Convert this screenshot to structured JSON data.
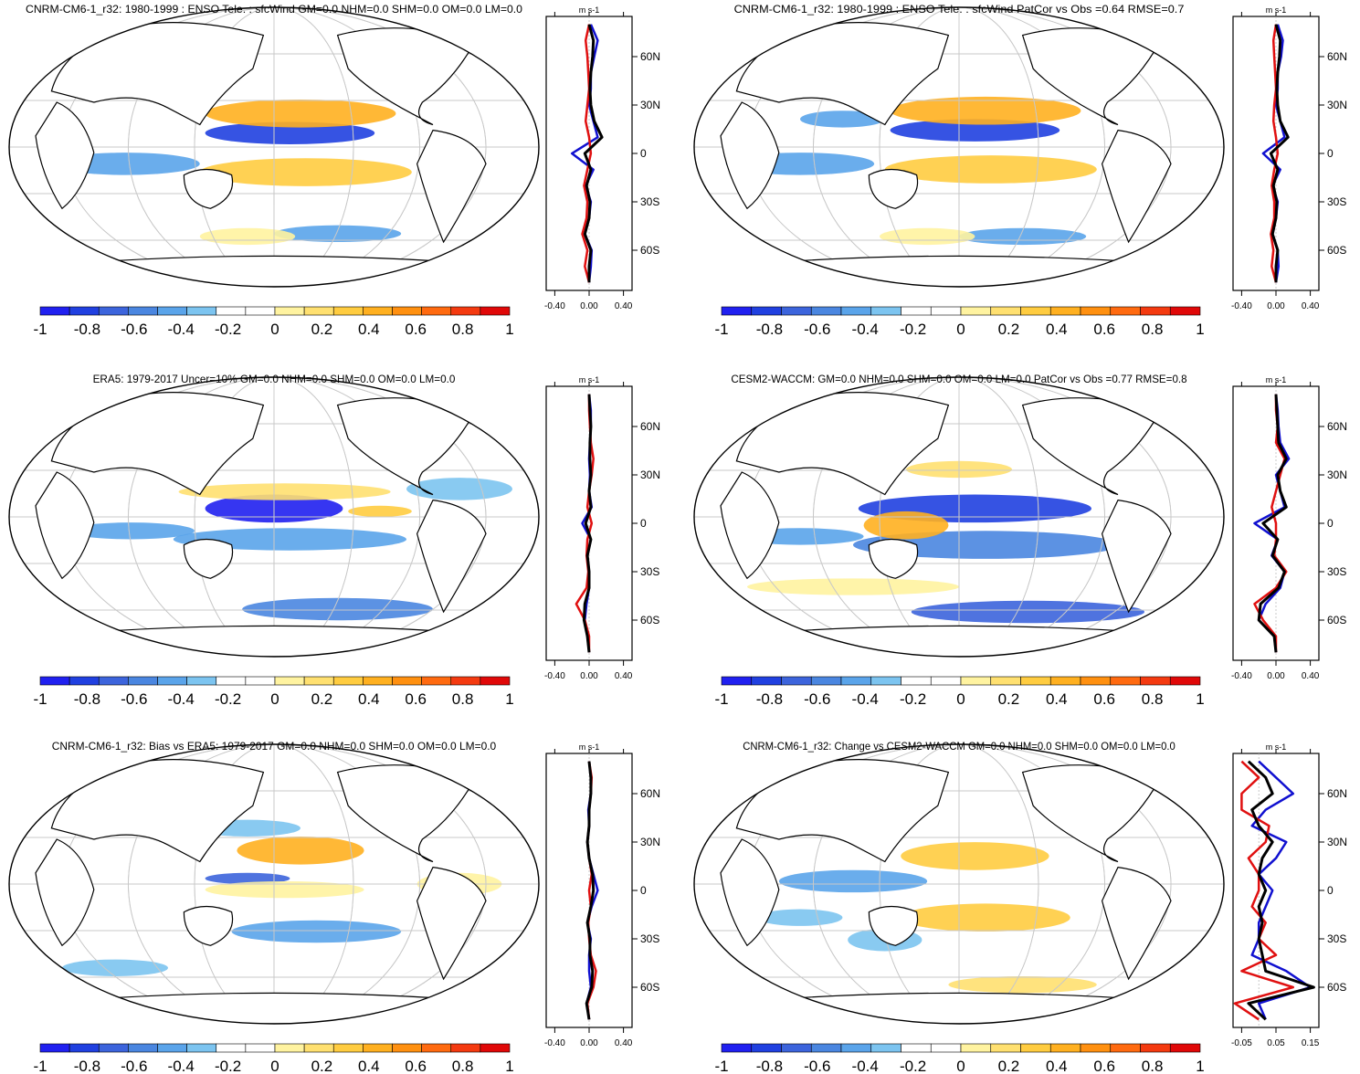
{
  "chart_data": [
    {
      "type": "heatmap",
      "title": "CNRM-CM6-1_r32: 1980-1999 : ENSO Tele. : sfcWind GM=0.0 NHM=0.0 SHM=0.0 OM=0.0 LM=0.0",
      "units": "m s-1",
      "colorbar_ticks": [
        "-1",
        "-0.8",
        "-0.6",
        "-0.4",
        "-0.2",
        "0",
        "0.2",
        "0.4",
        "0.6",
        "0.8",
        "1"
      ],
      "profile_xticks": [
        "-0.40",
        "0.00",
        "0.40"
      ],
      "lat_ticks": [
        "60N",
        "30N",
        "0",
        "30S",
        "60S"
      ],
      "lat_values": [
        60,
        30,
        0,
        -30,
        -60
      ],
      "profile": {
        "lat": [
          -80,
          -70,
          -60,
          -50,
          -40,
          -30,
          -20,
          -10,
          0,
          10,
          20,
          30,
          40,
          50,
          60,
          70,
          80
        ],
        "series": [
          {
            "name": "model",
            "color": "#1010d0",
            "values": [
              0.0,
              0.02,
              0.03,
              -0.05,
              0.0,
              0.02,
              -0.04,
              0.05,
              -0.2,
              0.1,
              0.05,
              0.0,
              0.02,
              0.02,
              0.06,
              0.1,
              0.02
            ]
          },
          {
            "name": "obs",
            "color": "#e01010",
            "values": [
              0.0,
              -0.05,
              -0.02,
              -0.08,
              -0.03,
              -0.02,
              -0.06,
              -0.02,
              0.02,
              0.0,
              -0.04,
              -0.02,
              0.0,
              -0.01,
              -0.02,
              -0.04,
              0.0
            ]
          },
          {
            "name": "multi",
            "color": "#000000",
            "values": [
              0.0,
              0.0,
              0.02,
              -0.05,
              0.0,
              0.01,
              -0.03,
              0.02,
              -0.05,
              0.15,
              0.06,
              0.02,
              0.01,
              0.02,
              0.04,
              0.05,
              0.0
            ]
          }
        ]
      }
    },
    {
      "type": "heatmap",
      "title": "CNRM-CM6-1_r32: 1980-1999 : ENSO Tele. : sfcWind PatCor vs Obs =0.64 RMSE=0.7",
      "units": "m s-1",
      "colorbar_ticks": [
        "-1",
        "-0.8",
        "-0.6",
        "-0.4",
        "-0.2",
        "0",
        "0.2",
        "0.4",
        "0.6",
        "0.8",
        "1"
      ],
      "profile_xticks": [
        "-0.40",
        "0.00",
        "0.40"
      ],
      "lat_ticks": [
        "60N",
        "30N",
        "0",
        "30S",
        "60S"
      ],
      "lat_values": [
        60,
        30,
        0,
        -30,
        -60
      ],
      "profile": {
        "lat": [
          -80,
          -70,
          -60,
          -50,
          -40,
          -30,
          -20,
          -10,
          0,
          10,
          20,
          30,
          40,
          50,
          60,
          70,
          80
        ],
        "series": [
          {
            "name": "model",
            "color": "#1010d0",
            "values": [
              0.0,
              0.03,
              0.02,
              -0.04,
              0.0,
              0.02,
              -0.04,
              0.05,
              -0.15,
              0.1,
              0.05,
              0.0,
              0.02,
              0.02,
              0.06,
              0.08,
              0.02
            ]
          },
          {
            "name": "obs",
            "color": "#e01010",
            "values": [
              0.0,
              -0.05,
              -0.03,
              -0.06,
              -0.02,
              -0.02,
              -0.05,
              -0.02,
              0.02,
              0.0,
              -0.03,
              -0.02,
              0.0,
              -0.01,
              -0.02,
              -0.03,
              0.0
            ]
          },
          {
            "name": "multi",
            "color": "#000000",
            "values": [
              0.0,
              0.0,
              0.02,
              -0.04,
              0.0,
              0.01,
              -0.03,
              0.02,
              -0.06,
              0.14,
              0.05,
              0.02,
              0.01,
              0.02,
              0.04,
              0.05,
              0.0
            ]
          }
        ]
      }
    },
    {
      "type": "heatmap",
      "title": "ERA5: 1979-2017 Uncer=10% GM=0.0 NHM=0.0 SHM=0.0 OM=0.0 LM=0.0",
      "units": "m s-1",
      "colorbar_ticks": [
        "-1",
        "-0.8",
        "-0.6",
        "-0.4",
        "-0.2",
        "0",
        "0.2",
        "0.4",
        "0.6",
        "0.8",
        "1"
      ],
      "profile_xticks": [
        "-0.40",
        "0.00",
        "0.40"
      ],
      "lat_ticks": [
        "60N",
        "30N",
        "0",
        "30S",
        "60S"
      ],
      "lat_values": [
        60,
        30,
        0,
        -30,
        -60
      ],
      "profile": {
        "lat": [
          -80,
          -70,
          -60,
          -50,
          -40,
          -30,
          -20,
          -10,
          0,
          10,
          20,
          30,
          40,
          50,
          60,
          70,
          80
        ],
        "series": [
          {
            "name": "model",
            "color": "#1010d0",
            "values": [
              0.0,
              -0.02,
              -0.05,
              -0.03,
              0.0,
              0.0,
              -0.02,
              0.02,
              -0.08,
              0.03,
              0.0,
              0.01,
              0.0,
              0.01,
              0.02,
              0.02,
              0.0
            ]
          },
          {
            "name": "obs",
            "color": "#e01010",
            "values": [
              0.0,
              0.0,
              -0.05,
              -0.15,
              -0.03,
              -0.01,
              -0.03,
              -0.02,
              0.03,
              -0.02,
              0.0,
              0.03,
              0.05,
              0.02,
              0.01,
              0.0,
              0.0
            ]
          },
          {
            "name": "multi",
            "color": "#000000",
            "values": [
              0.0,
              -0.02,
              -0.06,
              -0.05,
              0.0,
              0.0,
              -0.02,
              0.02,
              -0.04,
              0.02,
              0.0,
              0.02,
              0.01,
              0.01,
              0.02,
              0.01,
              0.0
            ]
          }
        ]
      }
    },
    {
      "type": "heatmap",
      "title": "CESM2-WACCM: GM=0.0 NHM=0.0 SHM=0.0 OM=0.0 LM=0.0 PatCor vs Obs =0.77 RMSE=0.8",
      "units": "m s-1",
      "colorbar_ticks": [
        "-1",
        "-0.8",
        "-0.6",
        "-0.4",
        "-0.2",
        "0",
        "0.2",
        "0.4",
        "0.6",
        "0.8",
        "1"
      ],
      "profile_xticks": [
        "-0.40",
        "0.00",
        "0.40"
      ],
      "lat_ticks": [
        "60N",
        "30N",
        "0",
        "30S",
        "60S"
      ],
      "lat_values": [
        60,
        30,
        0,
        -30,
        -60
      ],
      "profile": {
        "lat": [
          -80,
          -70,
          -60,
          -50,
          -40,
          -30,
          -20,
          -10,
          0,
          10,
          20,
          30,
          40,
          50,
          60,
          70,
          80
        ],
        "series": [
          {
            "name": "model",
            "color": "#1010d0",
            "values": [
              0.0,
              -0.02,
              -0.2,
              -0.12,
              0.05,
              0.1,
              -0.05,
              0.02,
              -0.25,
              0.1,
              0.05,
              0.0,
              0.15,
              0.05,
              0.03,
              0.02,
              0.0
            ]
          },
          {
            "name": "obs",
            "color": "#e01010",
            "values": [
              0.0,
              0.0,
              -0.15,
              -0.25,
              0.0,
              0.12,
              -0.02,
              0.0,
              0.0,
              -0.05,
              0.0,
              0.05,
              0.1,
              0.0,
              0.02,
              0.0,
              0.0
            ]
          },
          {
            "name": "multi",
            "color": "#000000",
            "values": [
              0.0,
              -0.02,
              -0.2,
              -0.18,
              0.03,
              0.1,
              -0.04,
              0.02,
              -0.15,
              0.12,
              0.05,
              0.02,
              0.12,
              0.03,
              0.02,
              0.01,
              0.0
            ]
          }
        ]
      }
    },
    {
      "type": "heatmap",
      "title": "CNRM-CM6-1_r32: Bias vs ERA5: 1979-2017 GM=0.0 NHM=0.0 SHM=0.0 OM=0.0 LM=0.0",
      "units": "m s-1",
      "colorbar_ticks": [
        "-1",
        "-0.8",
        "-0.6",
        "-0.4",
        "-0.2",
        "0",
        "0.2",
        "0.4",
        "0.6",
        "0.8",
        "1"
      ],
      "profile_xticks": [
        "-0.40",
        "0.00",
        "0.40"
      ],
      "lat_ticks": [
        "60N",
        "30N",
        "0",
        "30S",
        "60S"
      ],
      "lat_values": [
        60,
        30,
        0,
        -30,
        -60
      ],
      "profile": {
        "lat": [
          -80,
          -70,
          -60,
          -50,
          -40,
          -30,
          -20,
          -10,
          0,
          10,
          20,
          30,
          40,
          50,
          60,
          70,
          80
        ],
        "series": [
          {
            "name": "model",
            "color": "#1010d0",
            "values": [
              0.0,
              -0.03,
              0.02,
              0.0,
              0.0,
              0.02,
              -0.02,
              0.03,
              0.1,
              0.05,
              0.0,
              -0.02,
              0.0,
              -0.01,
              0.02,
              0.02,
              0.0
            ]
          },
          {
            "name": "obs",
            "color": "#e01010",
            "values": [
              0.0,
              -0.02,
              0.05,
              0.08,
              0.02,
              0.0,
              -0.01,
              0.02,
              0.0,
              0.03,
              0.0,
              -0.02,
              0.0,
              0.0,
              0.02,
              0.03,
              0.0
            ]
          },
          {
            "name": "multi",
            "color": "#000000",
            "values": [
              0.0,
              -0.03,
              0.03,
              0.04,
              0.01,
              0.01,
              -0.02,
              0.02,
              0.05,
              0.04,
              0.0,
              -0.02,
              0.0,
              0.0,
              0.02,
              0.02,
              0.0
            ]
          }
        ]
      }
    },
    {
      "type": "heatmap",
      "title": "CNRM-CM6-1_r32: Change vs CESM2-WACCM GM=0.0 NHM=0.0 SHM=0.0 OM=0.0 LM=0.0",
      "units": "m s-1",
      "colorbar_ticks": [
        "-1",
        "-0.8",
        "-0.6",
        "-0.4",
        "-0.2",
        "0",
        "0.2",
        "0.4",
        "0.6",
        "0.8",
        "1"
      ],
      "profile_xticks": [
        "-0.05",
        "0.05",
        "0.15"
      ],
      "lat_ticks": [
        "60N",
        "30N",
        "0",
        "30S",
        "60S"
      ],
      "lat_values": [
        60,
        30,
        0,
        -30,
        -60
      ],
      "profile": {
        "lat": [
          -80,
          -70,
          -60,
          -50,
          -40,
          -30,
          -20,
          -10,
          0,
          10,
          20,
          30,
          40,
          50,
          60,
          70,
          80
        ],
        "series": [
          {
            "name": "model",
            "color": "#1010d0",
            "values": [
              0.02,
              0.0,
              0.15,
              0.08,
              -0.02,
              0.0,
              0.0,
              0.02,
              0.04,
              0.0,
              0.05,
              0.08,
              -0.02,
              0.02,
              0.1,
              0.05,
              0.0
            ]
          },
          {
            "name": "obs",
            "color": "#e01010",
            "values": [
              0.0,
              -0.07,
              0.1,
              -0.05,
              0.05,
              0.0,
              0.02,
              -0.02,
              0.0,
              0.0,
              -0.03,
              0.02,
              0.03,
              -0.05,
              -0.05,
              0.0,
              -0.05
            ]
          },
          {
            "name": "multi",
            "color": "#000000",
            "values": [
              0.02,
              -0.03,
              0.16,
              0.02,
              0.01,
              0.0,
              0.01,
              0.0,
              0.02,
              0.0,
              0.01,
              0.04,
              0.0,
              -0.02,
              0.04,
              0.02,
              -0.03
            ]
          }
        ]
      }
    }
  ]
}
